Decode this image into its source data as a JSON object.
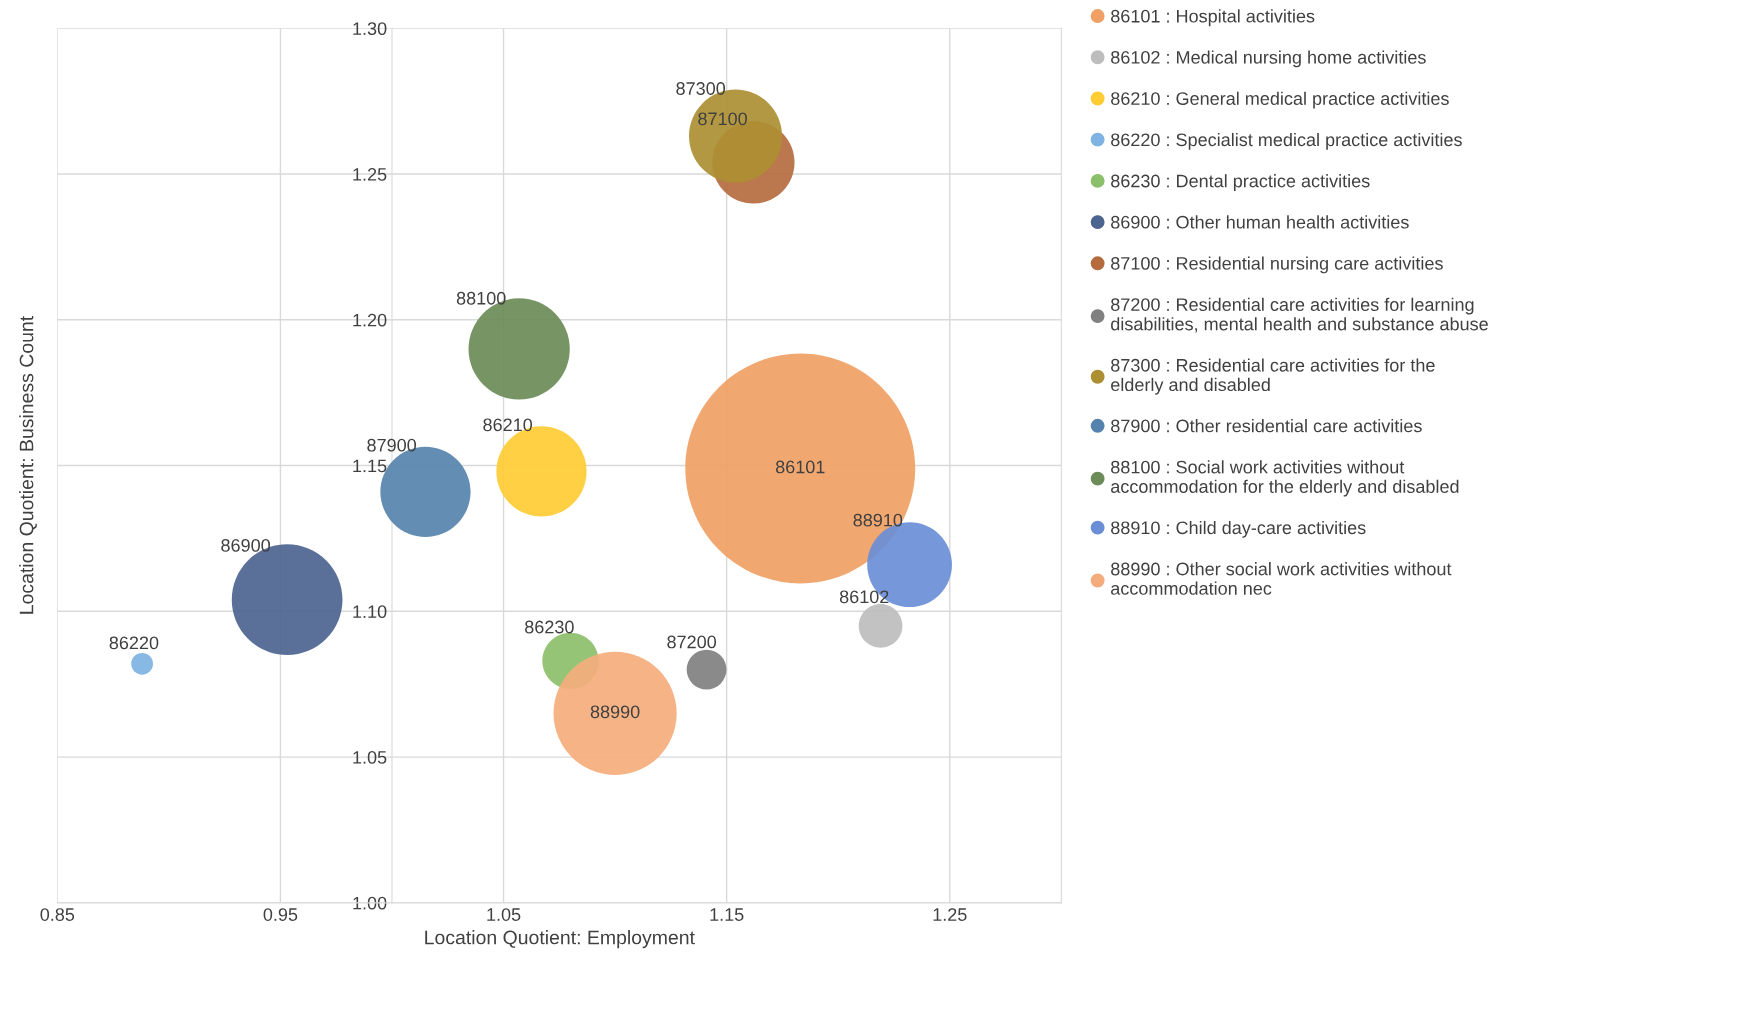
{
  "chart_data": {
    "type": "bubble",
    "xlabel": "Location Quotient: Employment",
    "ylabel": "Location Quotient: Business Count",
    "xlim": [
      0.85,
      1.3
    ],
    "xticks": [
      {
        "value": 0.85,
        "label": "0.85"
      },
      {
        "value": 0.95,
        "label": "0.95"
      },
      {
        "value": 1.05,
        "label": "1.05"
      },
      {
        "value": 1.15,
        "label": "1.15"
      },
      {
        "value": 1.25,
        "label": "1.25"
      }
    ],
    "ylim": [
      1.0,
      1.3
    ],
    "yticks": [
      {
        "value": 1.0,
        "label": "1.00"
      },
      {
        "value": 1.05,
        "label": "1.05"
      },
      {
        "value": 1.1,
        "label": "1.10"
      },
      {
        "value": 1.15,
        "label": "1.15"
      },
      {
        "value": 1.2,
        "label": "1.20"
      },
      {
        "value": 1.25,
        "label": "1.25"
      },
      {
        "value": 1.3,
        "label": "1.30"
      }
    ],
    "grid": true,
    "legend": "right",
    "marker": "circle",
    "series": [
      {
        "name": "86101 : Hospital activities",
        "color": "#f0a064",
        "x": [
          1.183
        ],
        "values": [
          1.149
        ],
        "sizes": [
          1.0
        ]
      },
      {
        "name": "86102 : Medical nursing home activities",
        "color": "#bdbdbd",
        "x": [
          1.219
        ],
        "values": [
          1.095
        ],
        "sizes": [
          0.036
        ]
      },
      {
        "name": "86210 : General medical practice activities",
        "color": "#ffcc33",
        "x": [
          1.067
        ],
        "values": [
          1.148
        ],
        "sizes": [
          0.154
        ]
      },
      {
        "name": "86220 : Specialist medical practice activities",
        "color": "#7eb3e3",
        "x": [
          0.888
        ],
        "values": [
          1.082
        ],
        "sizes": [
          0.009
        ]
      },
      {
        "name": "86230 : Dental practice activities",
        "color": "#8cbf6a",
        "x": [
          1.08
        ],
        "values": [
          1.083
        ],
        "sizes": [
          0.06
        ]
      },
      {
        "name": "86900 : Other human health activities",
        "color": "#4c6490",
        "x": [
          0.953
        ],
        "values": [
          1.104
        ],
        "sizes": [
          0.232
        ]
      },
      {
        "name": "87100 : Residential nursing care activities",
        "color": "#b56b3e",
        "x": [
          1.162
        ],
        "values": [
          1.254
        ],
        "sizes": [
          0.128
        ]
      },
      {
        "name": "87200 : Residential care activities for learning disabilities, mental health and substance abuse",
        "color": "#808080",
        "x": [
          1.141
        ],
        "values": [
          1.08
        ],
        "sizes": [
          0.03
        ]
      },
      {
        "name": "87300 : Residential care activities for the elderly and disabled",
        "color": "#ad8f33",
        "x": [
          1.154
        ],
        "values": [
          1.263
        ],
        "sizes": [
          0.164
        ]
      },
      {
        "name": "87900 : Other residential care activities",
        "color": "#5683ad",
        "x": [
          1.015
        ],
        "values": [
          1.141
        ],
        "sizes": [
          0.154
        ]
      },
      {
        "name": "88100 : Social work activities without accommodation for the elderly and disabled",
        "color": "#6b8b58",
        "x": [
          1.057
        ],
        "values": [
          1.19
        ],
        "sizes": [
          0.194
        ]
      },
      {
        "name": "88910 : Child day-care activities",
        "color": "#6a8ed6",
        "x": [
          1.232
        ],
        "values": [
          1.116
        ],
        "sizes": [
          0.136
        ]
      },
      {
        "name": "88990 : Other social work activities without accommodation nec",
        "color": "#f4ac7c",
        "x": [
          1.1
        ],
        "values": [
          1.065
        ],
        "sizes": [
          0.287
        ]
      }
    ],
    "annotations": [
      {
        "text": "86101",
        "x": 1.183,
        "y": 1.149
      },
      {
        "text": "86102",
        "x": 1.219,
        "y": 1.095
      },
      {
        "text": "86210",
        "x": 1.067,
        "y": 1.148
      },
      {
        "text": "86220",
        "x": 0.888,
        "y": 1.082
      },
      {
        "text": "86230",
        "x": 1.08,
        "y": 1.083
      },
      {
        "text": "86900",
        "x": 0.953,
        "y": 1.104
      },
      {
        "text": "87100",
        "x": 1.162,
        "y": 1.254
      },
      {
        "text": "87200",
        "x": 1.141,
        "y": 1.08
      },
      {
        "text": "87300",
        "x": 1.154,
        "y": 1.263
      },
      {
        "text": "87900",
        "x": 1.015,
        "y": 1.141
      },
      {
        "text": "88100",
        "x": 1.057,
        "y": 1.19
      },
      {
        "text": "88910",
        "x": 1.232,
        "y": 1.116
      },
      {
        "text": "88990",
        "x": 1.1,
        "y": 1.065
      }
    ]
  }
}
